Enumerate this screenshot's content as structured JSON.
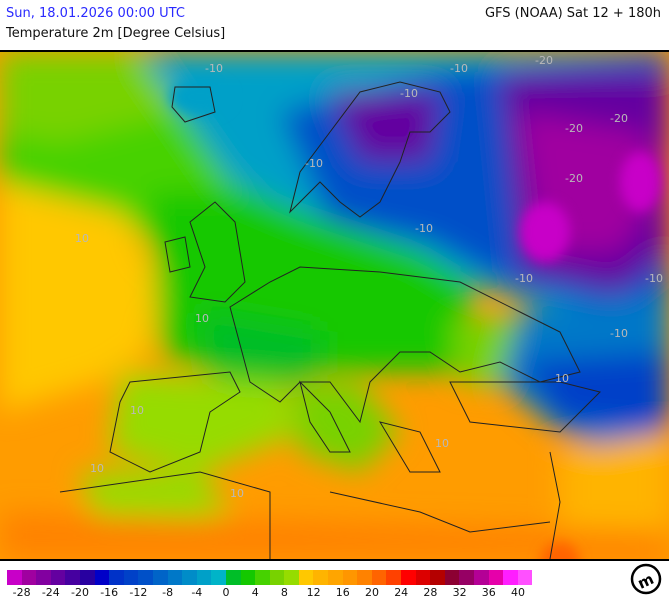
{
  "header": {
    "date": "Sun, 18.01.2026 00:00 UTC",
    "model": "GFS (NOAA) Sat 12 + 180h",
    "parameter": "Temperature 2m [Degree Celsius]"
  },
  "legend": {
    "colors": [
      "#c800c8",
      "#a000a0",
      "#8200a0",
      "#6400a0",
      "#4600a0",
      "#2800a0",
      "#0000c8",
      "#0032c8",
      "#0041c8",
      "#0050c8",
      "#0064c8",
      "#0078c8",
      "#008cc8",
      "#00a0c8",
      "#00b4c8",
      "#00be28",
      "#14c800",
      "#46d200",
      "#78d200",
      "#96dc00",
      "#ffc800",
      "#ffb400",
      "#ffa500",
      "#ff9600",
      "#ff8200",
      "#ff6400",
      "#ff4100",
      "#ff0000",
      "#dc0000",
      "#b40000",
      "#8c0032",
      "#960064",
      "#b40096",
      "#e600aa",
      "#ff1eff",
      "#ff50ff"
    ],
    "labels": [
      "-28",
      "-24",
      "-20",
      "-16",
      "-12",
      "-8",
      "-4",
      "0",
      "4",
      "8",
      "12",
      "16",
      "20",
      "24",
      "28",
      "32",
      "36",
      "40"
    ]
  },
  "contour_labels": [
    "-10",
    "-10",
    "-10",
    "-20",
    "-20",
    "-20",
    "-10",
    "-10",
    "-10",
    "-10",
    "10",
    "10",
    "10",
    "10",
    "10",
    "10",
    "10",
    "-10",
    "-20"
  ],
  "logo": "m"
}
